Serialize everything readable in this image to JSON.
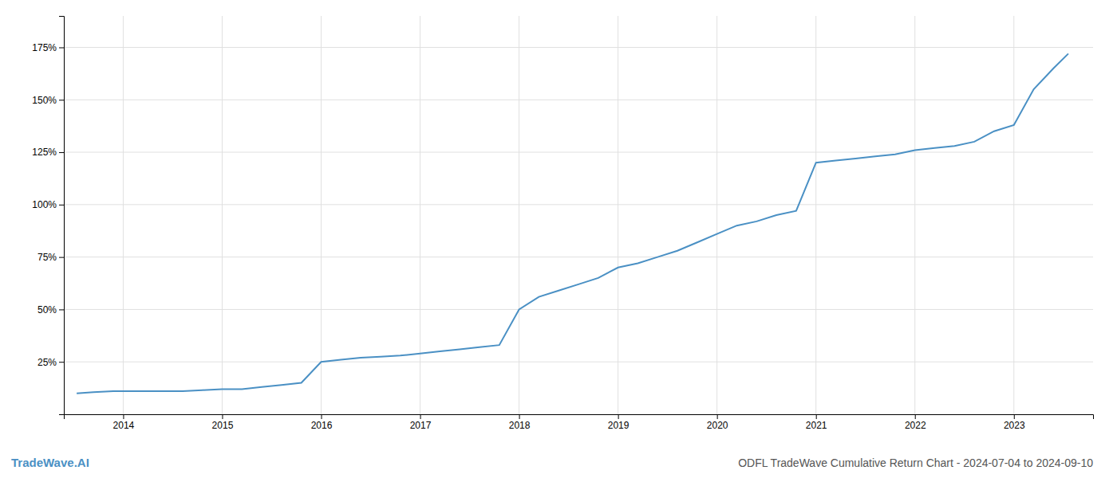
{
  "chart_data": {
    "type": "line",
    "title": "ODFL TradeWave Cumulative Return Chart - 2024-07-04 to 2024-09-10",
    "annotations": [
      {
        "text": "TradeWave.AI",
        "color": "#4a90c4"
      }
    ],
    "color": "#4a90c4",
    "x": [
      2013.53,
      2013.7,
      2013.9,
      2014.0,
      2014.2,
      2014.4,
      2014.6,
      2014.8,
      2015.0,
      2015.2,
      2015.4,
      2015.5,
      2015.6,
      2015.8,
      2016.0,
      2016.2,
      2016.4,
      2016.6,
      2016.8,
      2017.0,
      2017.2,
      2017.4,
      2017.6,
      2017.8,
      2018.0,
      2018.2,
      2018.4,
      2018.6,
      2018.8,
      2019.0,
      2019.2,
      2019.4,
      2019.6,
      2019.8,
      2020.0,
      2020.2,
      2020.4,
      2020.6,
      2020.8,
      2021.0,
      2021.2,
      2021.4,
      2021.6,
      2021.8,
      2022.0,
      2022.2,
      2022.4,
      2022.6,
      2022.8,
      2023.0,
      2023.2,
      2023.4,
      2023.55
    ],
    "values": [
      10,
      10.5,
      11,
      11,
      11,
      11,
      11,
      11.5,
      12,
      12,
      13,
      13.5,
      14,
      15,
      25,
      26,
      27,
      27.5,
      28,
      29,
      30,
      31,
      32,
      33,
      50,
      56,
      59,
      62,
      65,
      70,
      72,
      75,
      78,
      82,
      86,
      90,
      92,
      95,
      97,
      120,
      121,
      122,
      123,
      124,
      126,
      127,
      128,
      130,
      135,
      138,
      155,
      165,
      172
    ],
    "xlim": [
      2013.4,
      2023.8
    ],
    "xticks": [
      2014,
      2015,
      2016,
      2017,
      2018,
      2019,
      2020,
      2021,
      2022,
      2023
    ],
    "ylim": [
      0,
      190
    ],
    "yticks": [
      {
        "value": 25,
        "label": "25%"
      },
      {
        "value": 50,
        "label": "50%"
      },
      {
        "value": 75,
        "label": "75%"
      },
      {
        "value": 100,
        "label": "100%"
      },
      {
        "value": 125,
        "label": "125%"
      },
      {
        "value": 150,
        "label": "150%"
      },
      {
        "value": 175,
        "label": "175%"
      }
    ],
    "grid": true
  }
}
